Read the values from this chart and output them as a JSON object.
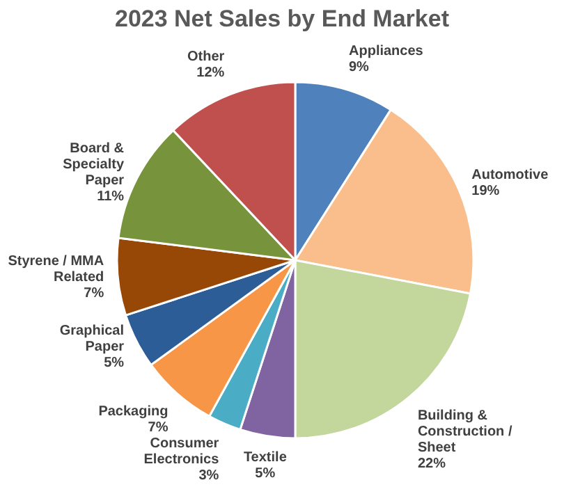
{
  "chart_data": {
    "type": "pie",
    "title": "2023 Net Sales by End Market",
    "categories": [
      "Appliances",
      "Automotive",
      "Building & Construction / Sheet",
      "Textile",
      "Consumer Electronics",
      "Packaging",
      "Graphical Paper",
      "Styrene / MMA Related",
      "Board & Specialty Paper",
      "Other"
    ],
    "values": [
      9,
      19,
      22,
      5,
      3,
      7,
      5,
      7,
      11,
      12
    ],
    "value_labels": [
      "9%",
      "19%",
      "22%",
      "5%",
      "3%",
      "7%",
      "5%",
      "7%",
      "11%",
      "12%"
    ],
    "colors": [
      "#4f81bd",
      "#f9be8b",
      "#c3d69b",
      "#8064a2",
      "#4bacc6",
      "#f79646",
      "#2c5d96",
      "#974806",
      "#77933c",
      "#c0504d"
    ]
  }
}
